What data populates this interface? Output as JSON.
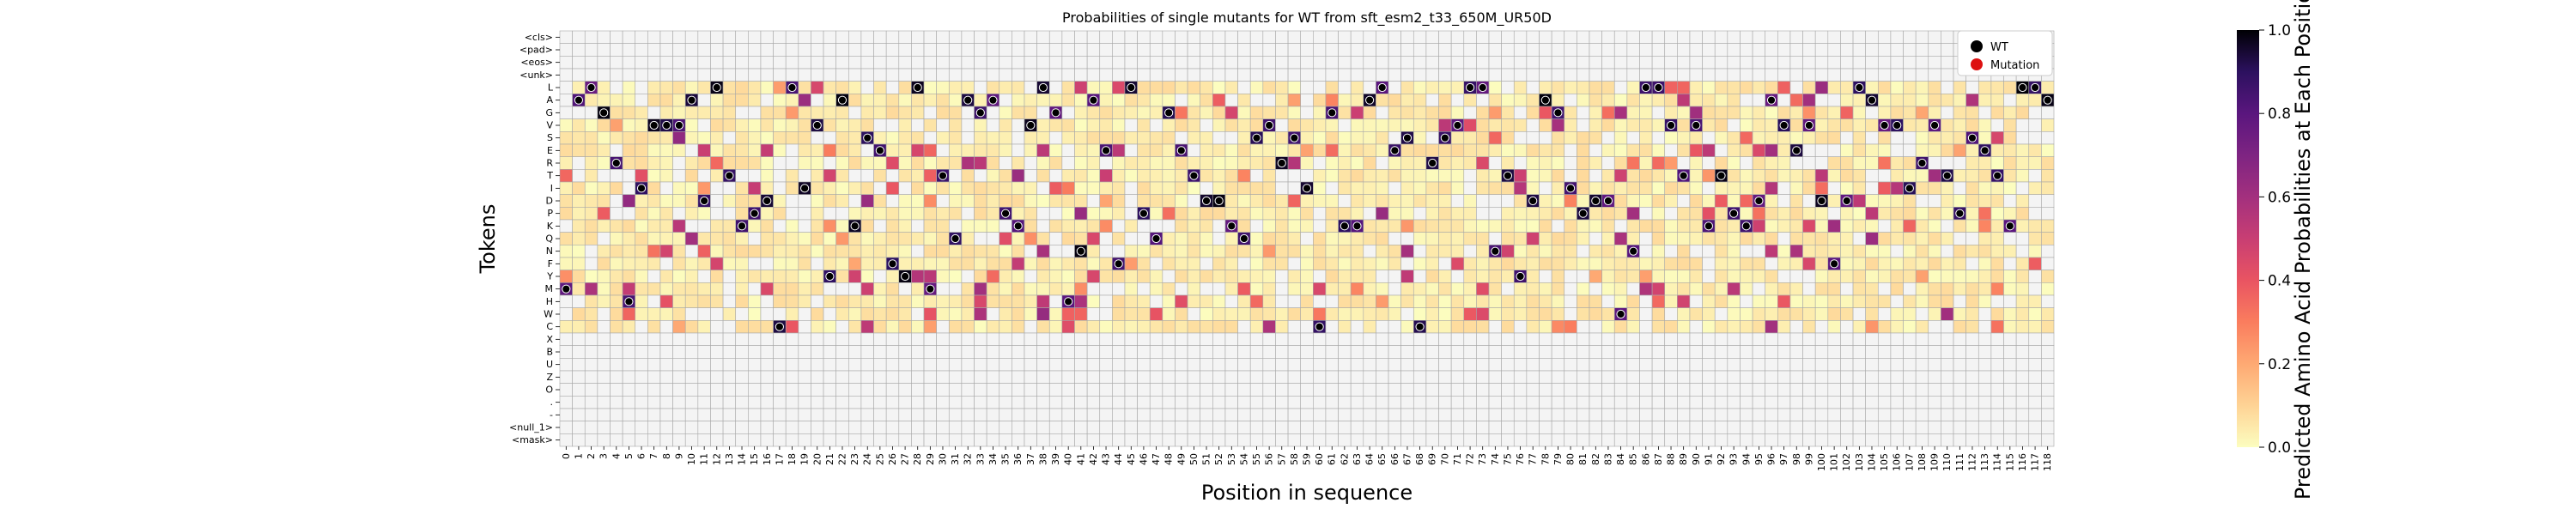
{
  "chart_data": {
    "type": "heatmap",
    "title": "Probabilities of single mutants for WT from sft_esm2_t33_650M_UR50D",
    "xlabel": "Position in sequence",
    "ylabel": "Tokens",
    "tokens": [
      "<cls>",
      "<pad>",
      "<eos>",
      "<unk>",
      "L",
      "A",
      "G",
      "V",
      "S",
      "E",
      "R",
      "T",
      "I",
      "D",
      "P",
      "K",
      "Q",
      "N",
      "F",
      "Y",
      "M",
      "H",
      "W",
      "C",
      "X",
      "B",
      "U",
      "Z",
      "O",
      ".",
      "-",
      "<null_1>",
      "<mask>"
    ],
    "positions": [
      "0",
      "1",
      "2",
      "3",
      "4",
      "5",
      "6",
      "7",
      "8",
      "9",
      "10",
      "11",
      "12",
      "13",
      "14",
      "15",
      "16",
      "17",
      "18",
      "19",
      "20",
      "21",
      "22",
      "23",
      "24",
      "25",
      "26",
      "27",
      "28",
      "29",
      "30",
      "31",
      "32",
      "33",
      "34",
      "35",
      "36",
      "37",
      "38",
      "39",
      "40",
      "41",
      "42",
      "43",
      "44",
      "45",
      "46",
      "47",
      "48",
      "49",
      "50",
      "51",
      "52",
      "53",
      "54",
      "55",
      "56",
      "57",
      "58",
      "59",
      "60",
      "61",
      "62",
      "63",
      "64",
      "65",
      "66",
      "67",
      "68",
      "69",
      "70",
      "71",
      "72",
      "73",
      "74",
      "75",
      "76",
      "77",
      "78",
      "79",
      "80",
      "81",
      "82",
      "83",
      "84",
      "85",
      "86",
      "87",
      "88",
      "89",
      "90",
      "91",
      "92",
      "93",
      "94",
      "95",
      "96",
      "97",
      "98",
      "99",
      "100",
      "101",
      "102",
      "103",
      "104",
      "105",
      "106",
      "107",
      "108",
      "109",
      "110",
      "111",
      "112",
      "113",
      "114",
      "115",
      "116",
      "117",
      "118"
    ],
    "wt_tokens": [
      "M",
      "A",
      "L",
      "G",
      "R",
      "H",
      "I",
      "V",
      "V",
      "V",
      "A",
      "D",
      "L",
      "T",
      "K",
      "P",
      "D",
      "C",
      "L",
      "I",
      "V",
      "Y",
      "A",
      "K",
      "S",
      "E",
      "F",
      "Y",
      "L",
      "M",
      "T",
      "Q",
      "A",
      "G",
      "A",
      "P",
      "K",
      "V",
      "L",
      "G",
      "H",
      "N",
      "A",
      "E",
      "F",
      "L",
      "P",
      "Q",
      "G",
      "E",
      "T",
      "D",
      "D",
      "K",
      "Q",
      "S",
      "V",
      "R",
      "S",
      "I",
      "C",
      "G",
      "K",
      "K",
      "A",
      "L",
      "E",
      "S",
      "C",
      "R",
      "S",
      "V",
      "L",
      "L",
      "N",
      "T",
      "Y",
      "D",
      "A",
      "G",
      "I",
      "P",
      "D",
      "D",
      "W",
      "N",
      "L",
      "L",
      "V",
      "T",
      "V",
      "K",
      "T",
      "P",
      "K",
      "D",
      "A",
      "V",
      "E",
      "V",
      "D",
      "F",
      "D",
      "L",
      "A",
      "V",
      "V",
      "I",
      "R",
      "V",
      "T",
      "P",
      "S",
      "E",
      "T",
      "K",
      "L",
      "L",
      "A"
    ],
    "mutation_count": 0,
    "colorbar": {
      "label": "Predicted Amino Acid Probabilities at Each Position",
      "ticks": [
        "0.0",
        "0.2",
        "0.4",
        "0.6",
        "0.8",
        "1.0"
      ],
      "range": [
        0.0,
        1.0
      ],
      "colormap": "magma_r"
    },
    "legend": {
      "placement": "top-right",
      "entries": [
        {
          "label": "WT",
          "color": "#000000"
        },
        {
          "label": "Mutation",
          "color": "#dd1111"
        }
      ]
    }
  },
  "colors": {
    "empty_cell": "#f4f4f4",
    "grid_line": "#a8a8a8",
    "wt_marker": "#000000",
    "mutation_marker": "#dd1111"
  }
}
